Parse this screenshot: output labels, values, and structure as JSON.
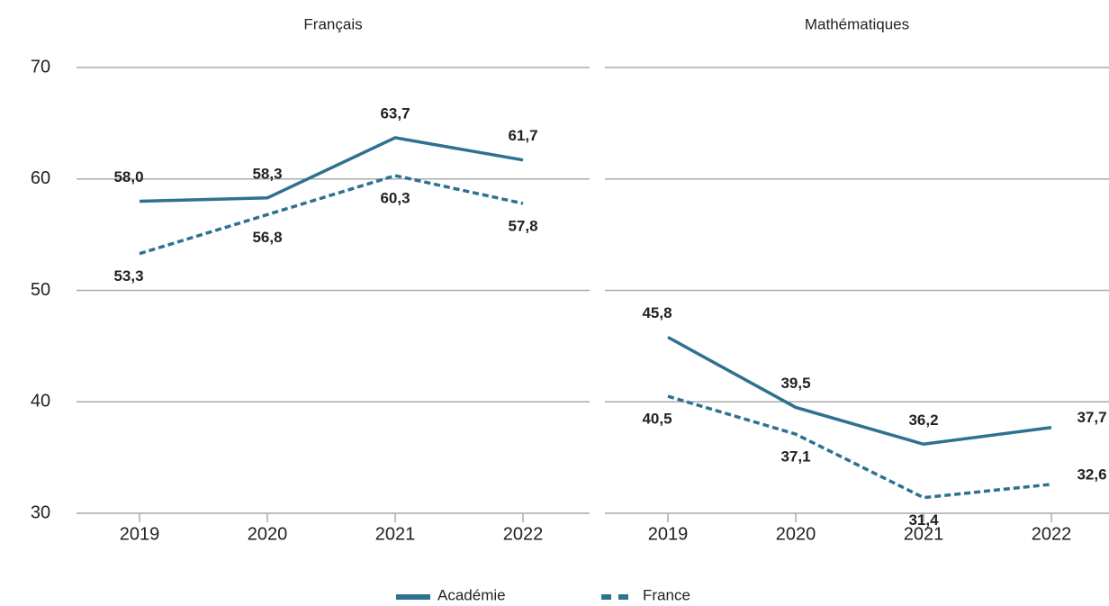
{
  "chart_data": [
    {
      "type": "line",
      "title": "Français",
      "categories": [
        "2019",
        "2020",
        "2021",
        "2022"
      ],
      "series": [
        {
          "name": "Académie",
          "color": "#2e7190",
          "dash": false,
          "values": [
            58.0,
            58.3,
            63.7,
            61.7
          ],
          "value_labels": [
            "58,0",
            "58,3",
            "63,7",
            "61,7"
          ]
        },
        {
          "name": "France",
          "color": "#2e7190",
          "dash": true,
          "values": [
            53.3,
            56.8,
            60.3,
            57.8
          ],
          "value_labels": [
            "53,3",
            "56,8",
            "60,3",
            "57,8"
          ]
        }
      ],
      "ylim": [
        30,
        70
      ],
      "yticks": [
        30,
        40,
        50,
        60,
        70
      ],
      "grid": true
    },
    {
      "type": "line",
      "title": "Mathématiques",
      "categories": [
        "2019",
        "2020",
        "2021",
        "2022"
      ],
      "series": [
        {
          "name": "Académie",
          "color": "#2e7190",
          "dash": false,
          "values": [
            45.8,
            39.5,
            36.2,
            37.7
          ],
          "value_labels": [
            "45,8",
            "39,5",
            "36,2",
            "37,7"
          ]
        },
        {
          "name": "France",
          "color": "#2e7190",
          "dash": true,
          "values": [
            40.5,
            37.1,
            31.4,
            32.6
          ],
          "value_labels": [
            "40,5",
            "37,1",
            "31,4",
            "32,6"
          ]
        }
      ],
      "ylim": [
        30,
        70
      ],
      "yticks": [
        30,
        40,
        50,
        60,
        70
      ],
      "grid": true
    }
  ]
}
